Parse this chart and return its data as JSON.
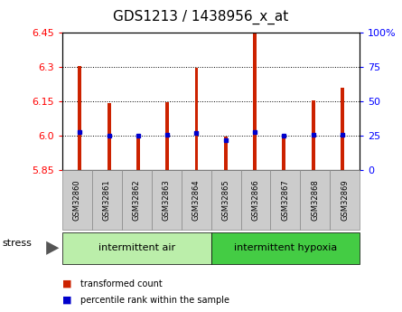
{
  "title": "GDS1213 / 1438956_x_at",
  "samples": [
    "GSM32860",
    "GSM32861",
    "GSM32862",
    "GSM32863",
    "GSM32864",
    "GSM32865",
    "GSM32866",
    "GSM32867",
    "GSM32868",
    "GSM32869"
  ],
  "transformed_counts": [
    6.305,
    6.143,
    6.005,
    6.148,
    6.295,
    5.995,
    6.445,
    6.005,
    6.155,
    6.21
  ],
  "percentile_ranks": [
    28,
    25,
    25,
    26,
    27,
    22,
    28,
    25,
    26,
    26
  ],
  "ylim": [
    5.85,
    6.45
  ],
  "yticks": [
    5.85,
    6.0,
    6.15,
    6.3,
    6.45
  ],
  "right_yticks": [
    0,
    25,
    50,
    75,
    100
  ],
  "right_ylabels": [
    "0",
    "25",
    "50",
    "75",
    "100%"
  ],
  "base_value": 5.85,
  "group1_label": "intermittent air",
  "group2_label": "intermittent hypoxia",
  "stress_label": "stress",
  "legend_count_label": "transformed count",
  "legend_rank_label": "percentile rank within the sample",
  "bar_color": "#cc2200",
  "dot_color": "#0000cc",
  "group1_bg": "#bbeeaa",
  "group2_bg": "#44cc44",
  "tick_bg": "#cccccc",
  "bar_width": 0.12,
  "title_fontsize": 11,
  "tick_fontsize": 8,
  "label_fontsize": 8
}
